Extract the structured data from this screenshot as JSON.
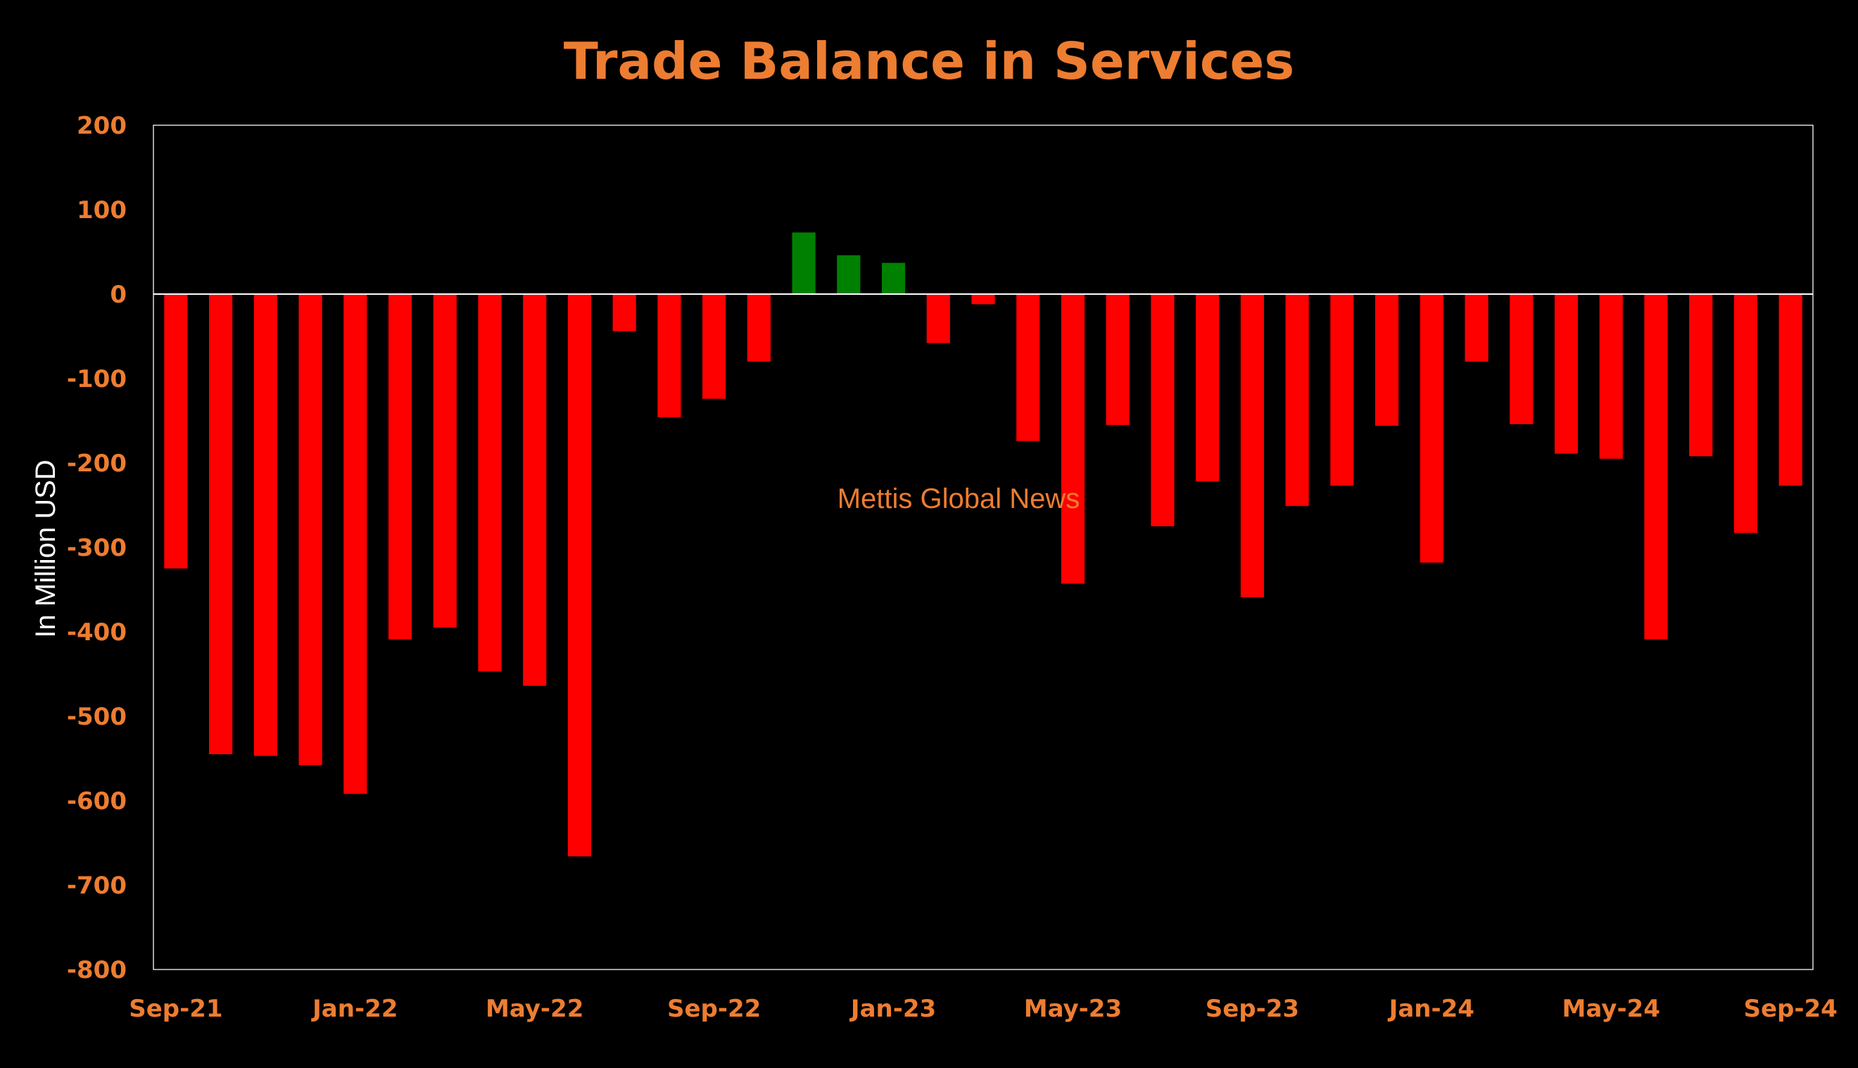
{
  "colors": {
    "background": "#000000",
    "text": "#ED7D31",
    "ylabel": "#FFFFFF",
    "negative": "#FF0000",
    "positive": "#008000",
    "frame": "#D9D9D9",
    "zero_line": "#FFFFFF"
  },
  "watermark": "Mettis Global News",
  "chart_data": {
    "type": "bar",
    "title": "Trade Balance in Services",
    "xlabel": "",
    "ylabel": "In Million USD",
    "ylim": [
      -800,
      200
    ],
    "yticks": [
      200,
      100,
      0,
      -100,
      -200,
      -300,
      -400,
      -500,
      -600,
      -700,
      -800
    ],
    "grid": false,
    "legend": "none",
    "x_tick_labels": [
      "Sep-21",
      "Jan-22",
      "May-22",
      "Sep-22",
      "Jan-23",
      "May-23",
      "Sep-23",
      "Jan-24",
      "May-24",
      "Sep-24"
    ],
    "categories": [
      "Sep-21",
      "Oct-21",
      "Nov-21",
      "Dec-21",
      "Jan-22",
      "Feb-22",
      "Mar-22",
      "Apr-22",
      "May-22",
      "Jun-22",
      "Jul-22",
      "Aug-22",
      "Sep-22",
      "Oct-22",
      "Nov-22",
      "Dec-22",
      "Jan-23",
      "Feb-23",
      "Mar-23",
      "Apr-23",
      "May-23",
      "Jun-23",
      "Jul-23",
      "Aug-23",
      "Sep-23",
      "Oct-23",
      "Nov-23",
      "Dec-23",
      "Jan-24",
      "Feb-24",
      "Mar-24",
      "Apr-24",
      "May-24",
      "Jun-24",
      "Jul-24",
      "Aug-24",
      "Sep-24"
    ],
    "values": [
      -325,
      -545,
      -547,
      -558,
      -592,
      -409,
      -395,
      -447,
      -464,
      -666,
      -44,
      -146,
      -124,
      -80,
      73,
      46,
      37,
      -58,
      -12,
      -174,
      -343,
      -155,
      -275,
      -222,
      -359,
      -251,
      -227,
      -156,
      -318,
      -80,
      -154,
      -189,
      -195,
      -409,
      -192,
      -283,
      -227
    ]
  }
}
